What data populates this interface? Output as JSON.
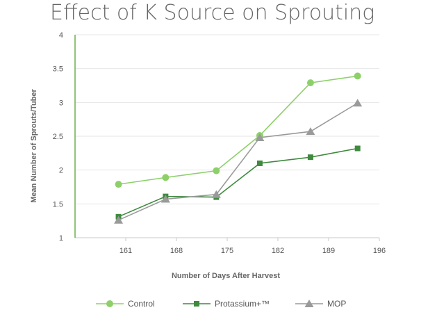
{
  "chart_data": {
    "type": "line",
    "title": "Effect of K Source on Sprouting",
    "xlabel": "Number of Days After Harvest",
    "ylabel": "Mean Number of Sprouts/Tuber",
    "xlim": [
      154,
      196
    ],
    "ylim": [
      1,
      4
    ],
    "x_ticks": [
      "161",
      "168",
      "175",
      "182",
      "189",
      "196"
    ],
    "y_ticks": [
      "1",
      "1.5",
      "2",
      "2.5",
      "3",
      "3.5",
      "4"
    ],
    "grid": "horizontal",
    "legend_position": "bottom",
    "series": [
      {
        "name": "Control",
        "color": "#8dd06a",
        "marker": "circle",
        "x": [
          160,
          166.5,
          173.5,
          179.5,
          186.5,
          193
        ],
        "y": [
          1.79,
          1.89,
          1.99,
          2.51,
          3.29,
          3.39
        ]
      },
      {
        "name": "Protassium+™",
        "color": "#3f8a3f",
        "marker": "square",
        "x": [
          160,
          166.5,
          173.5,
          179.5,
          186.5,
          193
        ],
        "y": [
          1.31,
          1.61,
          1.6,
          2.1,
          2.19,
          2.32
        ]
      },
      {
        "name": "MOP",
        "color": "#9a9a9a",
        "marker": "triangle",
        "x": [
          160,
          166.5,
          173.5,
          179.5,
          186.5,
          193
        ],
        "y": [
          1.26,
          1.57,
          1.64,
          2.48,
          2.57,
          2.99
        ]
      }
    ]
  }
}
